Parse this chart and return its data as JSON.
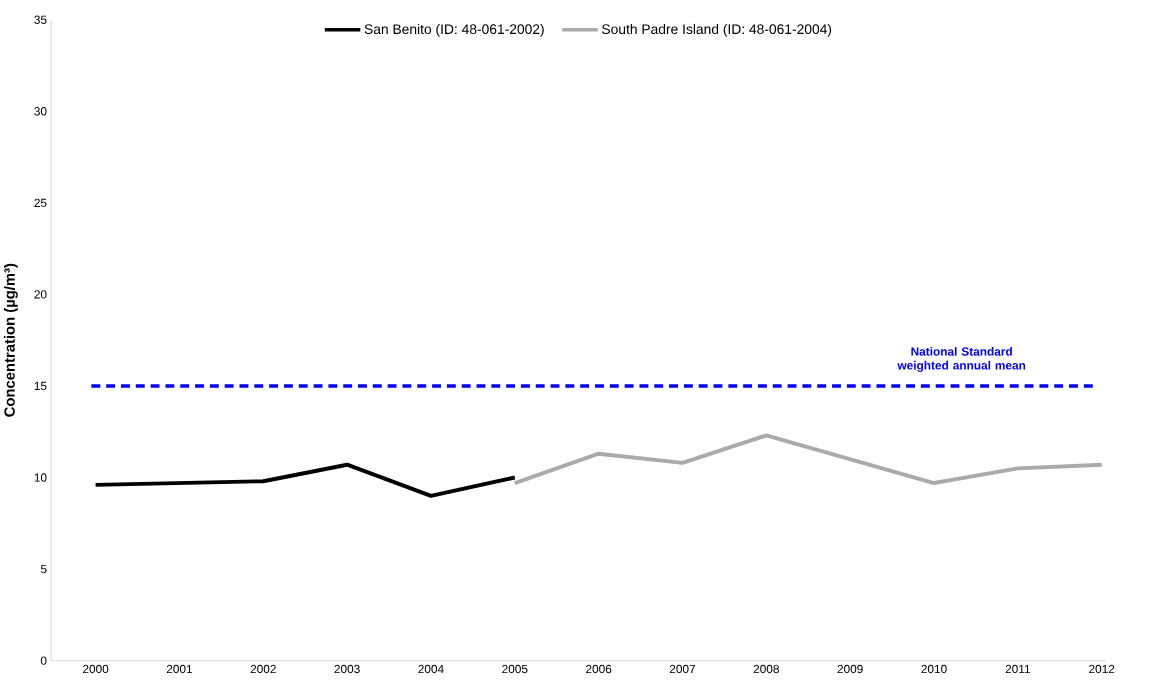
{
  "chart_data": {
    "type": "line",
    "ylabel": "Concentration (µg/m³)",
    "categories": [
      "2000",
      "2001",
      "2002",
      "2003",
      "2004",
      "2005",
      "2006",
      "2007",
      "2008",
      "2009",
      "2010",
      "2011",
      "2012"
    ],
    "series": [
      {
        "name": "San Benito (ID: 48-061-2002)",
        "color": "#000000",
        "values": [
          9.6,
          9.7,
          9.8,
          10.7,
          9.0,
          10.0,
          null,
          null,
          null,
          null,
          null,
          null,
          null
        ]
      },
      {
        "name": "South Padre Island (ID: 48-061-2004)",
        "color": "#aaaaaa",
        "values": [
          null,
          null,
          null,
          null,
          null,
          9.7,
          11.3,
          10.8,
          12.3,
          11.0,
          9.7,
          10.5,
          10.7
        ]
      }
    ],
    "ylim": [
      0,
      35
    ],
    "yticks": [
      0,
      5,
      10,
      15,
      20,
      25,
      30,
      35
    ],
    "ref_lines": [
      {
        "axis": "y",
        "value": 15,
        "label": "National Standard weighted annual mean",
        "color": "#0000ff",
        "line_style": "dashed"
      }
    ],
    "grid": false,
    "legend": "top",
    "marker": "none",
    "line_style": "solid"
  }
}
